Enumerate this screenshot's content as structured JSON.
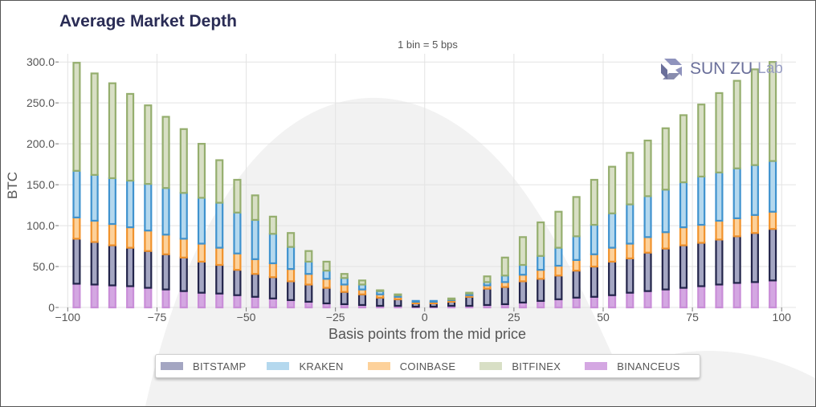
{
  "title": "Average Market Depth",
  "logo": {
    "text_main": "SUN ZU",
    "text_sub": "Lab"
  },
  "chart_data": {
    "type": "bar",
    "stacked": true,
    "subtitle": "1 bin = 5 bps",
    "xlabel": "Basis points from the mid price",
    "ylabel": "BTC",
    "xlim": [
      -103,
      104
    ],
    "ylim": [
      0,
      310
    ],
    "xticks": [
      -100,
      -75,
      -50,
      -25,
      0,
      25,
      50,
      75,
      100
    ],
    "xtick_labels": [
      "−100",
      "−75",
      "−50",
      "−25",
      "0",
      "25",
      "50",
      "75",
      "100"
    ],
    "yticks": [
      0,
      50,
      100,
      150,
      200,
      250,
      300
    ],
    "ytick_labels": [
      "0",
      "50.0",
      "100.0",
      "150.0",
      "200.0",
      "250.0",
      "300.0"
    ],
    "grid": true,
    "legend_position": "bottom",
    "x": [
      -97.5,
      -92.5,
      -87.5,
      -82.5,
      -77.5,
      -72.5,
      -67.5,
      -62.5,
      -57.5,
      -52.5,
      -47.5,
      -42.5,
      -37.5,
      -32.5,
      -27.5,
      -22.5,
      -17.5,
      -12.5,
      -7.5,
      -2.5,
      2.5,
      7.5,
      12.5,
      17.5,
      22.5,
      27.5,
      32.5,
      37.5,
      42.5,
      47.5,
      52.5,
      57.5,
      62.5,
      67.5,
      72.5,
      77.5,
      82.5,
      87.5,
      92.5,
      97.5
    ],
    "series": [
      {
        "name": "BINANCEUS",
        "fill": "#d4a7e2",
        "edge": "#c98ed8",
        "values": [
          29,
          28,
          27,
          26,
          24,
          22,
          20,
          18,
          17,
          15,
          13,
          11,
          9,
          7,
          5,
          4,
          3,
          2,
          2,
          1,
          1,
          2,
          2,
          3,
          4,
          6,
          8,
          10,
          12,
          13,
          15,
          18,
          20,
          22,
          24,
          26,
          28,
          30,
          31,
          33
        ]
      },
      {
        "name": "BITSTAMP",
        "fill": "#a4a6c2",
        "edge": "#22244a",
        "values": [
          55,
          52,
          49,
          47,
          45,
          43,
          41,
          38,
          35,
          31,
          28,
          26,
          23,
          21,
          19,
          15,
          13,
          10,
          8,
          4,
          4,
          5,
          11,
          20,
          21,
          26,
          27,
          29,
          33,
          37,
          41,
          42,
          47,
          50,
          52,
          53,
          55,
          57,
          60,
          63
        ]
      },
      {
        "name": "COINBASE",
        "fill": "#fdd19a",
        "edge": "#f0922c",
        "values": [
          26,
          26,
          26,
          25,
          25,
          24,
          23,
          22,
          21,
          20,
          18,
          17,
          15,
          13,
          11,
          9,
          6,
          4,
          3,
          2,
          2,
          2,
          2,
          4,
          6,
          8,
          11,
          12,
          13,
          15,
          17,
          18,
          19,
          20,
          22,
          22,
          23,
          22,
          22,
          21
        ]
      },
      {
        "name": "KRAKEN",
        "fill": "#b4d8ee",
        "edge": "#3f92ce",
        "values": [
          57,
          56,
          56,
          57,
          57,
          57,
          56,
          56,
          55,
          50,
          48,
          36,
          27,
          15,
          10,
          8,
          6,
          4,
          2,
          1,
          1,
          1,
          2,
          4,
          8,
          12,
          17,
          22,
          29,
          36,
          42,
          48,
          50,
          52,
          55,
          59,
          59,
          61,
          61,
          62
        ]
      },
      {
        "name": "BITFINEX",
        "fill": "#d8dfc5",
        "edge": "#95ae6e",
        "values": [
          132,
          124,
          116,
          106,
          96,
          87,
          78,
          66,
          52,
          40,
          30,
          21,
          17,
          13,
          11,
          5,
          5,
          1,
          1,
          0,
          0,
          1,
          1,
          7,
          22,
          34,
          41,
          44,
          48,
          55,
          57,
          63,
          68,
          75,
          82,
          88,
          97,
          107,
          117,
          121
        ]
      }
    ]
  }
}
